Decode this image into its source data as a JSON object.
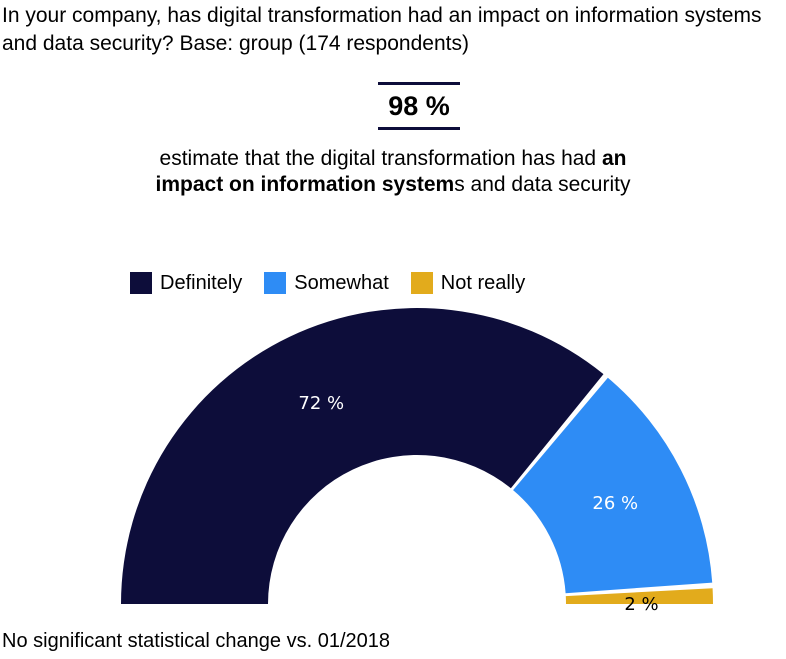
{
  "question": "In your company, has digital transformation had an impact on information systems and data security? Base: group (174 respondents)",
  "kpi": {
    "value": "98 %",
    "caption_before": "estimate that the digital transformation has had ",
    "caption_bold": "an impact on information system",
    "caption_after": "s and data security"
  },
  "footnote": "No significant statistical change vs. 01/2018",
  "colors": {
    "definitely": "#0d0d3a",
    "somewhat": "#2e8cf5",
    "not_really": "#e2ab1c",
    "label_text": "#ffffff"
  },
  "chart_data": {
    "type": "pie",
    "variant": "half-donut",
    "categories": [
      "Definitely",
      "Somewhat",
      "Not really"
    ],
    "values": [
      72,
      26,
      2
    ],
    "labels": [
      "72 %",
      "26 %",
      "2 %"
    ],
    "legend": "top"
  }
}
